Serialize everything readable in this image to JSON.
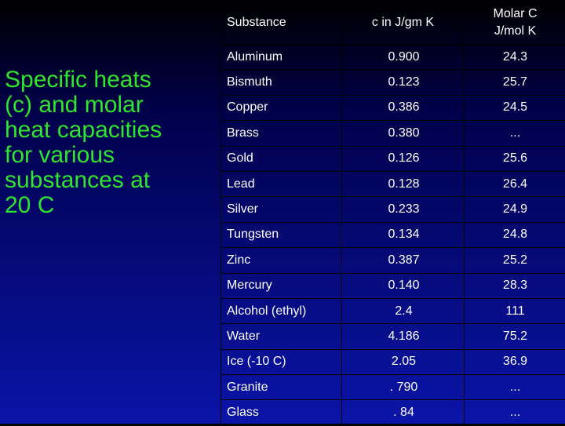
{
  "title_lines": [
    "Specific heats",
    "(c) and molar",
    "heat capacities",
    "for various",
    "substances at",
    "20 C"
  ],
  "table": {
    "headers": {
      "substance": "Substance",
      "specific_heat": "c in J/gm K",
      "molar_line1": "Molar C",
      "molar_line2": "J/mol K"
    },
    "rows": [
      {
        "name": "Aluminum",
        "c": "0.900",
        "molar": "24.3"
      },
      {
        "name": "Bismuth",
        "c": "0.123",
        "molar": "25.7"
      },
      {
        "name": "Copper",
        "c": "0.386",
        "molar": "24.5"
      },
      {
        "name": "Brass",
        "c": "0.380",
        "molar": "..."
      },
      {
        "name": "Gold",
        "c": "0.126",
        "molar": "25.6"
      },
      {
        "name": "Lead",
        "c": "0.128",
        "molar": "26.4"
      },
      {
        "name": "Silver",
        "c": "0.233",
        "molar": "24.9"
      },
      {
        "name": "Tungsten",
        "c": "0.134",
        "molar": "24.8"
      },
      {
        "name": "Zinc",
        "c": "0.387",
        "molar": "25.2"
      },
      {
        "name": "Mercury",
        "c": "0.140",
        "molar": "28.3"
      },
      {
        "name": "Alcohol (ethyl)",
        "c": "2.4",
        "molar": "111"
      },
      {
        "name": "Water",
        "c": "4.186",
        "molar": "75.2"
      },
      {
        "name": "Ice (-10 C)",
        "c": "2.05",
        "molar": "36.9"
      },
      {
        "name": "Granite",
        "c": ". 790",
        "molar": "..."
      },
      {
        "name": "Glass",
        "c": ". 84",
        "molar": "..."
      }
    ]
  },
  "colors": {
    "title_text": "#2ee62e",
    "table_text": "#ffffff",
    "grid_lines": "#000000",
    "background_top": "#000000",
    "background_bottom": "#0a14a8"
  }
}
